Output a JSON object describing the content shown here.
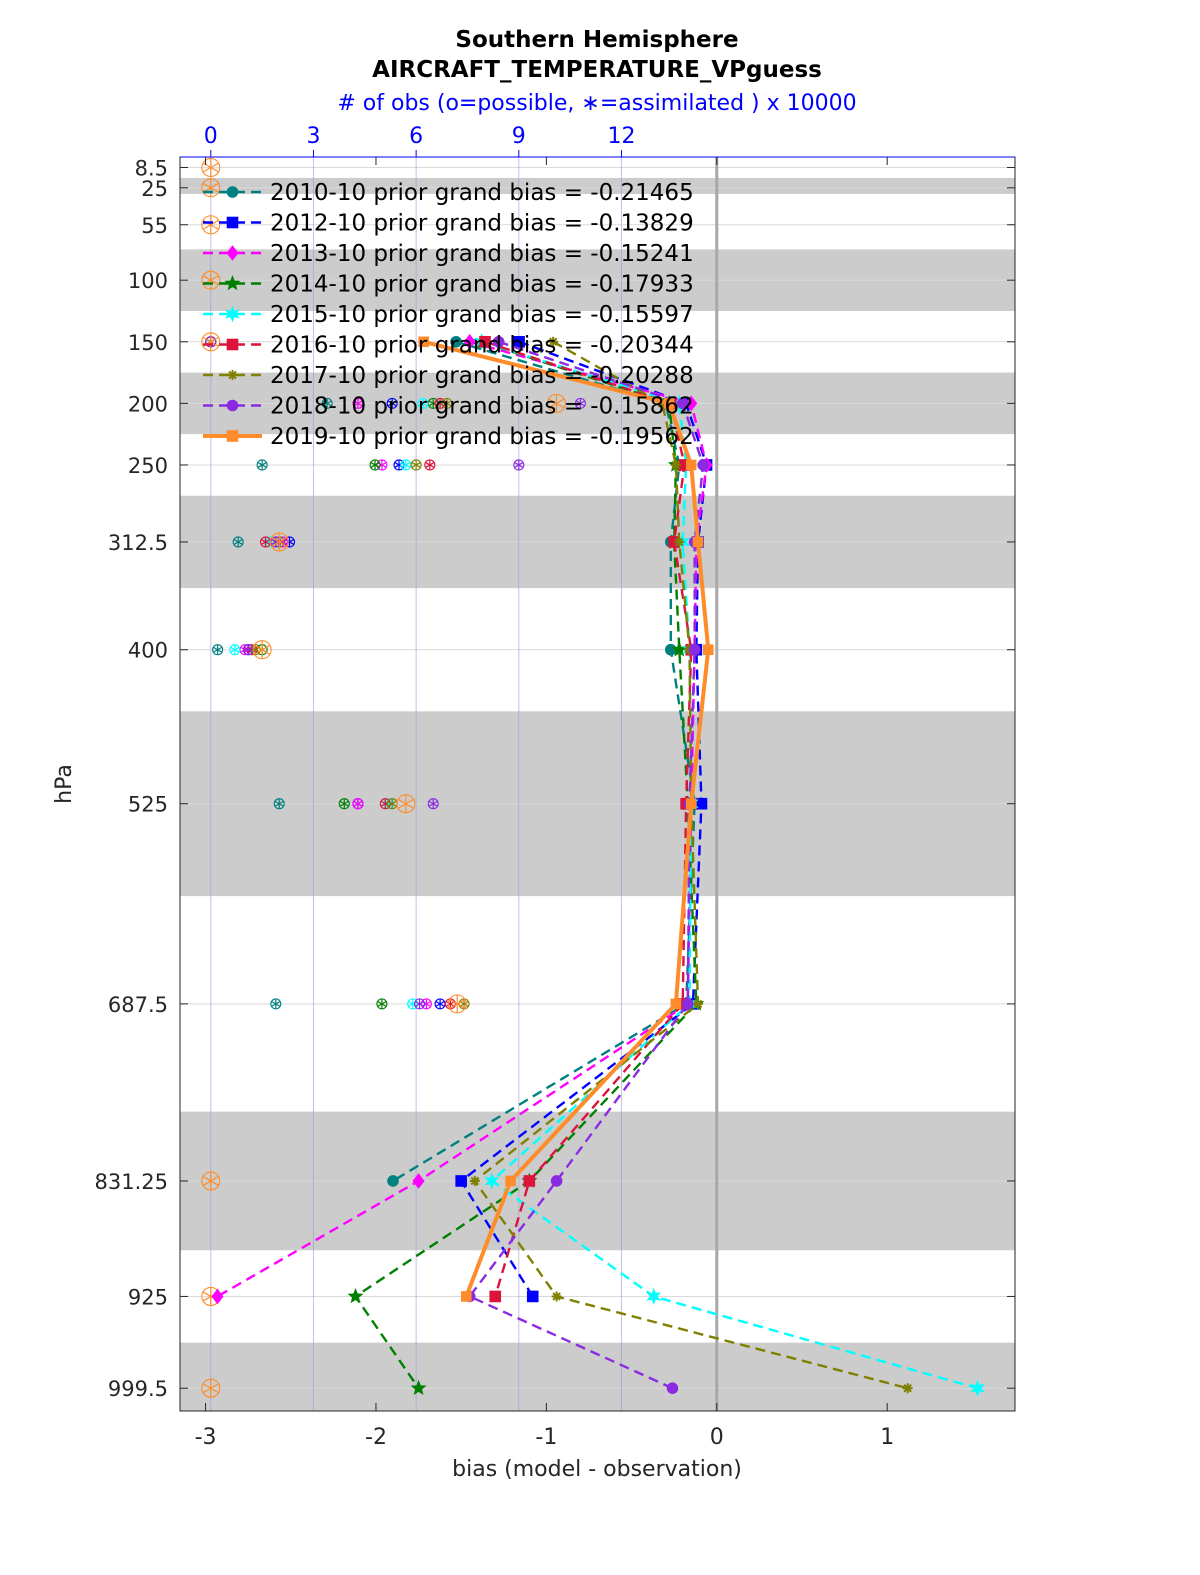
{
  "chart_data": {
    "type": "line",
    "title": "Southern Hemisphere",
    "subtitle": "AIRCRAFT_TEMPERATURE_VPguess",
    "top_axis_label": "# of obs (o=possible, ∗=assimilated ) x 10000",
    "xlabel": "bias (model - observation)",
    "ylabel": "hPa",
    "xlim": [
      -3.15,
      1.75
    ],
    "x_ticks": [
      "-3",
      "-2",
      "-1",
      "0",
      "1"
    ],
    "x_tick_values": [
      -3,
      -2,
      -1,
      0,
      1
    ],
    "top_xlim": [
      -0.9,
      23.5
    ],
    "top_ticks": [
      "0",
      "3",
      "6",
      "9",
      "12"
    ],
    "top_tick_values": [
      0,
      3,
      6,
      9,
      12
    ],
    "top_axis_color": "#0000ff",
    "ylim": [
      1018,
      0
    ],
    "y_scale": "linear, reversed",
    "levels": [
      8.5,
      25,
      55,
      100,
      150,
      200,
      250,
      312.5,
      400,
      525,
      687.5,
      831.25,
      925,
      999.5
    ],
    "y_tick_labels": [
      "8.5",
      "25",
      "55",
      "100",
      "150",
      "200",
      "250",
      "312.5",
      "400",
      "525",
      "687.5",
      "831.25",
      "925",
      "999.5"
    ],
    "shaded_bands": [
      [
        17,
        30
      ],
      [
        75,
        125
      ],
      [
        175,
        225
      ],
      [
        275,
        350
      ],
      [
        450,
        600
      ],
      [
        775,
        887.5
      ],
      [
        962.5,
        1018
      ]
    ],
    "grid": true,
    "zero_line": true,
    "legend_location": "top-left",
    "series": [
      {
        "name": "2010-10 prior grand bias = -0.21465",
        "color": "#008080",
        "marker": "circle",
        "dash": true,
        "values": [
          [
            -1.53,
            150
          ],
          [
            -0.3,
            200
          ],
          [
            -0.22,
            250
          ],
          [
            -0.27,
            312.5
          ],
          [
            -0.27,
            400
          ],
          [
            -0.13,
            525
          ],
          [
            -0.18,
            687.5
          ],
          [
            -1.9,
            831.25
          ]
        ],
        "obs_possible": [
          [
            0,
            150
          ],
          [
            3.4,
            200
          ],
          [
            1.5,
            250
          ],
          [
            0.8,
            312.5
          ],
          [
            0.2,
            400
          ],
          [
            2.0,
            525
          ],
          [
            1.9,
            687.5
          ]
        ],
        "obs_assimilated": [
          [
            0,
            150
          ],
          [
            3.4,
            200
          ],
          [
            1.5,
            250
          ],
          [
            0.8,
            312.5
          ],
          [
            0.2,
            400
          ],
          [
            2.0,
            525
          ],
          [
            1.9,
            687.5
          ]
        ]
      },
      {
        "name": "2012-10 prior grand bias = -0.13829",
        "color": "#0000ff",
        "marker": "square",
        "dash": true,
        "values": [
          [
            -1.16,
            150
          ],
          [
            -0.18,
            200
          ],
          [
            -0.06,
            250
          ],
          [
            -0.11,
            312.5
          ],
          [
            -0.12,
            400
          ],
          [
            -0.09,
            525
          ],
          [
            -0.14,
            687.5
          ],
          [
            -1.5,
            831.25
          ],
          [
            -1.08,
            925
          ]
        ],
        "obs_possible": [
          [
            0,
            150
          ],
          [
            5.3,
            200
          ],
          [
            5.5,
            250
          ],
          [
            2.3,
            312.5
          ],
          [
            1.1,
            400
          ],
          [
            4.3,
            525
          ],
          [
            6.7,
            687.5
          ]
        ],
        "obs_assimilated": [
          [
            0,
            150
          ],
          [
            5.3,
            200
          ],
          [
            5.5,
            250
          ],
          [
            2.3,
            312.5
          ],
          [
            1.1,
            400
          ],
          [
            4.3,
            525
          ],
          [
            6.7,
            687.5
          ]
        ]
      },
      {
        "name": "2013-10 prior grand bias = -0.15241",
        "color": "#ff00ff",
        "marker": "diamond",
        "dash": true,
        "values": [
          [
            -1.45,
            150
          ],
          [
            -0.15,
            200
          ],
          [
            -0.06,
            250
          ],
          [
            -0.12,
            312.5
          ],
          [
            -0.13,
            400
          ],
          [
            -0.15,
            525
          ],
          [
            -0.17,
            687.5
          ],
          [
            -1.75,
            831.25
          ],
          [
            -2.93,
            925
          ]
        ],
        "obs_possible": [
          [
            0,
            150
          ],
          [
            4.3,
            200
          ],
          [
            5.0,
            250
          ],
          [
            2.1,
            312.5
          ],
          [
            1.0,
            400
          ],
          [
            4.3,
            525
          ],
          [
            6.3,
            687.5
          ]
        ],
        "obs_assimilated": [
          [
            0,
            150
          ],
          [
            4.3,
            200
          ],
          [
            5.0,
            250
          ],
          [
            2.1,
            312.5
          ],
          [
            1.0,
            400
          ],
          [
            4.3,
            525
          ],
          [
            6.3,
            687.5
          ]
        ]
      },
      {
        "name": "2014-10 prior grand bias = -0.17933",
        "color": "#008000",
        "marker": "star",
        "dash": true,
        "values": [
          [
            -1.38,
            150
          ],
          [
            -0.28,
            200
          ],
          [
            -0.24,
            250
          ],
          [
            -0.25,
            312.5
          ],
          [
            -0.22,
            400
          ],
          [
            -0.17,
            525
          ],
          [
            -0.12,
            687.5
          ],
          [
            -1.1,
            831.25
          ],
          [
            -2.12,
            925
          ],
          [
            -1.75,
            999.5
          ]
        ],
        "obs_possible": [
          [
            0,
            150
          ],
          [
            6.5,
            200
          ],
          [
            4.8,
            250
          ],
          [
            1.9,
            312.5
          ],
          [
            1.5,
            400
          ],
          [
            3.9,
            525
          ],
          [
            5.0,
            687.5
          ]
        ],
        "obs_assimilated": [
          [
            0,
            150
          ],
          [
            6.5,
            200
          ],
          [
            4.8,
            250
          ],
          [
            1.9,
            312.5
          ],
          [
            1.5,
            400
          ],
          [
            3.9,
            525
          ],
          [
            5.0,
            687.5
          ]
        ]
      },
      {
        "name": "2015-10 prior grand bias = -0.15597",
        "color": "#00ffff",
        "marker": "hexagram",
        "dash": true,
        "values": [
          [
            -1.38,
            150
          ],
          [
            -0.22,
            200
          ],
          [
            -0.18,
            250
          ],
          [
            -0.2,
            312.5
          ],
          [
            -0.16,
            400
          ],
          [
            -0.15,
            525
          ],
          [
            -0.16,
            687.5
          ],
          [
            -1.32,
            831.25
          ],
          [
            -0.37,
            925
          ],
          [
            1.53,
            999.5
          ]
        ],
        "obs_possible": [
          [
            0,
            150
          ],
          [
            6.2,
            200
          ],
          [
            5.7,
            250
          ],
          [
            1.7,
            312.5
          ],
          [
            0.7,
            400
          ],
          [
            5.2,
            525
          ],
          [
            5.9,
            687.5
          ]
        ],
        "obs_assimilated": [
          [
            0,
            150
          ],
          [
            6.2,
            200
          ],
          [
            5.7,
            250
          ],
          [
            1.7,
            312.5
          ],
          [
            0.7,
            400
          ],
          [
            5.2,
            525
          ],
          [
            5.9,
            687.5
          ]
        ]
      },
      {
        "name": "2016-10 prior grand bias = -0.20344",
        "color": "#dc143c",
        "marker": "square",
        "dash": true,
        "values": [
          [
            -1.36,
            150
          ],
          [
            -0.27,
            200
          ],
          [
            -0.19,
            250
          ],
          [
            -0.25,
            312.5
          ],
          [
            -0.15,
            400
          ],
          [
            -0.18,
            525
          ],
          [
            -0.2,
            687.5
          ],
          [
            -1.1,
            831.25
          ],
          [
            -1.3,
            925
          ]
        ],
        "obs_possible": [
          [
            0,
            150
          ],
          [
            6.7,
            200
          ],
          [
            6.4,
            250
          ],
          [
            1.6,
            312.5
          ],
          [
            1.2,
            400
          ],
          [
            5.1,
            525
          ],
          [
            7.0,
            687.5
          ]
        ],
        "obs_assimilated": [
          [
            0,
            150
          ],
          [
            6.7,
            200
          ],
          [
            6.4,
            250
          ],
          [
            1.6,
            312.5
          ],
          [
            1.2,
            400
          ],
          [
            5.1,
            525
          ],
          [
            7.0,
            687.5
          ]
        ]
      },
      {
        "name": "2017-10 prior grand bias = -0.20288",
        "color": "#808000",
        "marker": "asterisk",
        "dash": true,
        "values": [
          [
            -0.96,
            150
          ],
          [
            -0.32,
            200
          ],
          [
            -0.24,
            250
          ],
          [
            -0.22,
            312.5
          ],
          [
            -0.16,
            400
          ],
          [
            -0.15,
            525
          ],
          [
            -0.11,
            687.5
          ],
          [
            -1.42,
            831.25
          ],
          [
            -0.94,
            925
          ],
          [
            1.12,
            999.5
          ]
        ],
        "obs_possible": [
          [
            0,
            150
          ],
          [
            6.9,
            200
          ],
          [
            6.0,
            250
          ],
          [
            2.0,
            312.5
          ],
          [
            1.3,
            400
          ],
          [
            5.3,
            525
          ],
          [
            7.4,
            687.5
          ]
        ],
        "obs_assimilated": [
          [
            0,
            150
          ],
          [
            6.9,
            200
          ],
          [
            6.0,
            250
          ],
          [
            2.0,
            312.5
          ],
          [
            1.3,
            400
          ],
          [
            5.3,
            525
          ],
          [
            7.4,
            687.5
          ]
        ]
      },
      {
        "name": "2018-10 prior grand bias = -0.15862",
        "color": "#8a2be2",
        "marker": "circle",
        "dash": true,
        "values": [
          [
            -1.28,
            150
          ],
          [
            -0.2,
            200
          ],
          [
            -0.08,
            250
          ],
          [
            -0.13,
            312.5
          ],
          [
            -0.13,
            400
          ],
          [
            -0.16,
            525
          ],
          [
            -0.17,
            687.5
          ],
          [
            -0.94,
            831.25
          ],
          [
            -1.45,
            925
          ],
          [
            -0.26,
            999.5
          ]
        ],
        "obs_possible": [
          [
            0,
            150
          ],
          [
            10.8,
            200
          ],
          [
            9.0,
            250
          ],
          [
            1.9,
            312.5
          ],
          [
            1.1,
            400
          ],
          [
            6.5,
            525
          ],
          [
            6.1,
            687.5
          ]
        ],
        "obs_assimilated": [
          [
            0,
            150
          ],
          [
            10.8,
            200
          ],
          [
            9.0,
            250
          ],
          [
            1.9,
            312.5
          ],
          [
            1.1,
            400
          ],
          [
            6.5,
            525
          ],
          [
            6.1,
            687.5
          ]
        ]
      },
      {
        "name": "2019-10 prior grand bias = -0.19562",
        "color": "#ff8c2a",
        "marker": "square",
        "dash": false,
        "values": [
          [
            -1.72,
            150
          ],
          [
            -0.28,
            200
          ],
          [
            -0.15,
            250
          ],
          [
            -0.11,
            312.5
          ],
          [
            -0.05,
            400
          ],
          [
            -0.15,
            525
          ],
          [
            -0.24,
            687.5
          ],
          [
            -1.21,
            831.25
          ],
          [
            -1.47,
            925
          ]
        ],
        "obs_possible": [
          [
            0,
            8.5
          ],
          [
            0,
            25
          ],
          [
            0,
            55
          ],
          [
            0,
            100
          ],
          [
            0,
            150
          ],
          [
            10.1,
            200
          ],
          [
            2.0,
            312.5
          ],
          [
            1.5,
            400
          ],
          [
            5.7,
            525
          ],
          [
            7.2,
            687.5
          ],
          [
            0,
            831.25
          ],
          [
            0,
            925
          ],
          [
            0,
            999.5
          ]
        ],
        "obs_assimilated": [
          [
            0,
            8.5
          ],
          [
            0,
            25
          ],
          [
            0,
            55
          ],
          [
            0,
            100
          ],
          [
            0,
            150
          ],
          [
            10.1,
            200
          ],
          [
            2.0,
            312.5
          ],
          [
            1.5,
            400
          ],
          [
            5.7,
            525
          ],
          [
            7.2,
            687.5
          ],
          [
            0,
            831.25
          ],
          [
            0,
            925
          ],
          [
            0,
            999.5
          ]
        ]
      }
    ]
  }
}
